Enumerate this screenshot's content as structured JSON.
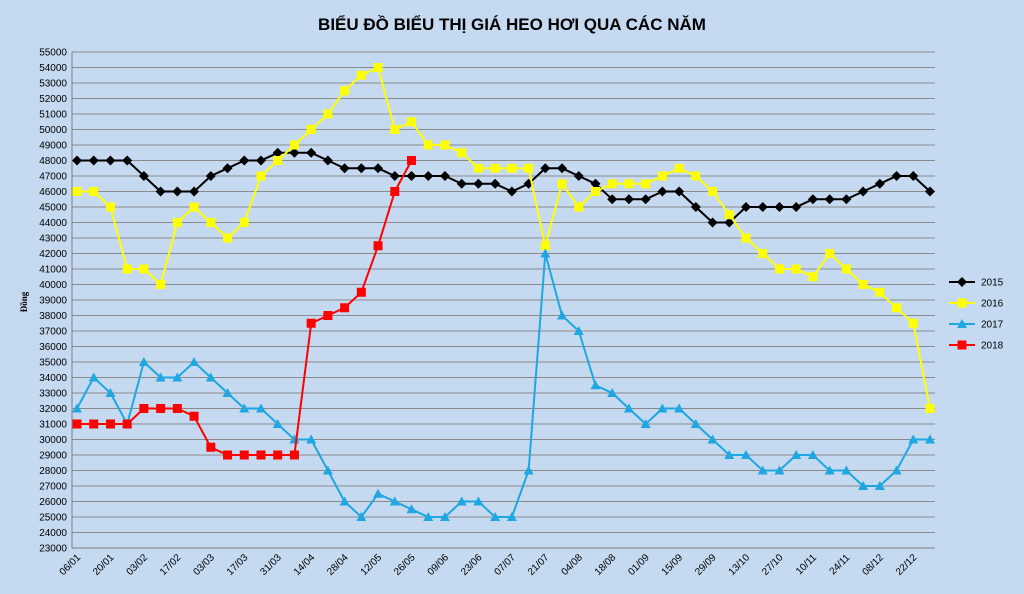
{
  "chart_data": {
    "type": "line",
    "title": "BIỂU ĐỒ BIỂU THỊ GIÁ HEO HƠI QUA CÁC NĂM",
    "xlabel": "",
    "ylabel": "Đồng",
    "ylim": [
      23000,
      55000
    ],
    "ytick_step": 1000,
    "grid": "horizontal",
    "legend_position": "right",
    "x_tick_labels": [
      "06/01",
      "20/01",
      "03/02",
      "17/02",
      "03/03",
      "17/03",
      "31/03",
      "14/04",
      "28/04",
      "12/05",
      "26/05",
      "09/06",
      "23/06",
      "07/07",
      "21/07",
      "04/08",
      "18/08",
      "01/09",
      "15/09",
      "29/09",
      "13/10",
      "27/10",
      "10/11",
      "24/11",
      "08/12",
      "22/12"
    ],
    "series": [
      {
        "name": "2015",
        "color": "#000000",
        "marker": "diamond",
        "values": [
          48000,
          48000,
          48000,
          48000,
          47000,
          46000,
          46000,
          46000,
          47000,
          47500,
          48000,
          48000,
          48500,
          48500,
          48500,
          48000,
          47500,
          47500,
          47500,
          47000,
          47000,
          47000,
          47000,
          46500,
          46500,
          46500,
          46000,
          46500,
          47500,
          47500,
          47000,
          46500,
          45500,
          45500,
          45500,
          46000,
          46000,
          45000,
          44000,
          44000,
          45000,
          45000,
          45000,
          45000,
          45500,
          45500,
          45500,
          46000,
          46500,
          47000,
          47000,
          46000
        ]
      },
      {
        "name": "2016",
        "color": "#ffff00",
        "marker": "square",
        "values": [
          46000,
          46000,
          45000,
          41000,
          41000,
          40000,
          44000,
          45000,
          44000,
          43000,
          44000,
          47000,
          48000,
          49000,
          50000,
          51000,
          52500,
          53500,
          54000,
          50000,
          50500,
          49000,
          49000,
          48500,
          47500,
          47500,
          47500,
          47500,
          42500,
          46500,
          45000,
          46000,
          46500,
          46500,
          46500,
          47000,
          47500,
          47000,
          46000,
          44500,
          43000,
          42000,
          41000,
          41000,
          40500,
          42000,
          41000,
          40000,
          39500,
          38500,
          37500,
          32000
        ]
      },
      {
        "name": "2017",
        "color": "#1ea7e0",
        "marker": "triangle",
        "values": [
          32000,
          34000,
          33000,
          31000,
          35000,
          34000,
          34000,
          35000,
          34000,
          33000,
          32000,
          32000,
          31000,
          30000,
          30000,
          28000,
          26000,
          25000,
          26500,
          26000,
          25500,
          25000,
          25000,
          26000,
          26000,
          25000,
          25000,
          28000,
          42000,
          38000,
          37000,
          33500,
          33000,
          32000,
          31000,
          32000,
          32000,
          31000,
          30000,
          29000,
          29000,
          28000,
          28000,
          29000,
          29000,
          28000,
          28000,
          27000,
          27000,
          28000,
          30000,
          30000
        ]
      },
      {
        "name": "2018",
        "color": "#ff0000",
        "marker": "square",
        "values": [
          31000,
          31000,
          31000,
          31000,
          32000,
          32000,
          32000,
          31500,
          29500,
          29000,
          29000,
          29000,
          29000,
          29000,
          37500,
          38000,
          38500,
          39500,
          42500,
          46000,
          48000
        ]
      }
    ]
  }
}
